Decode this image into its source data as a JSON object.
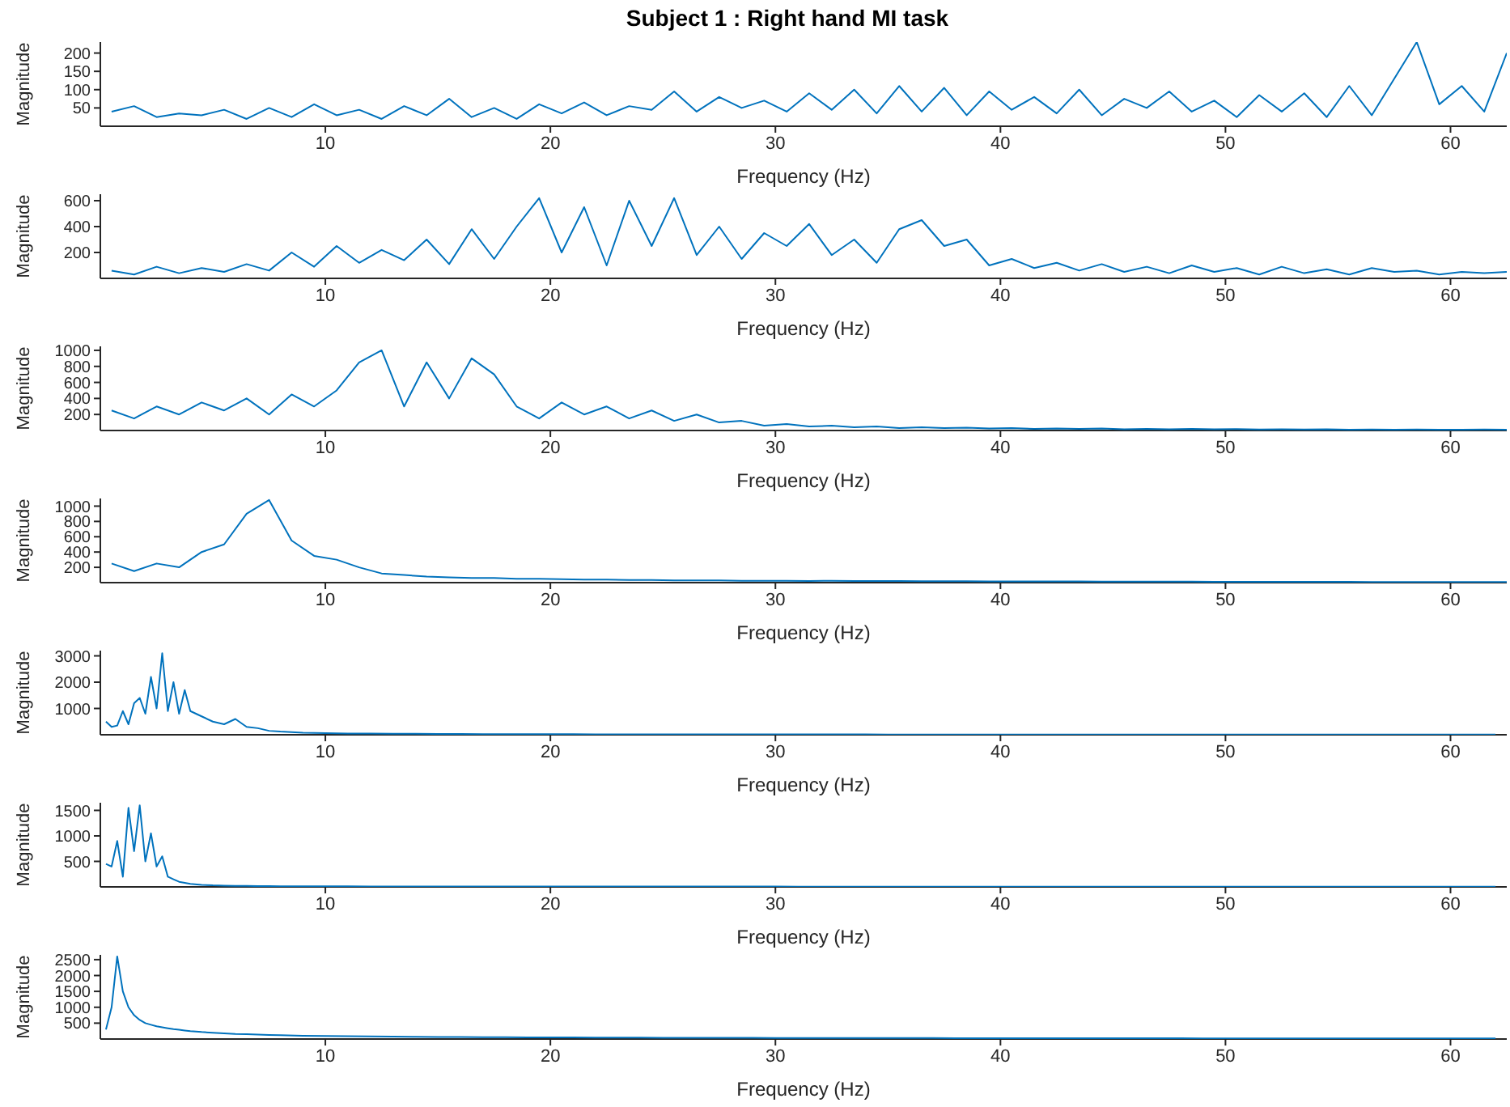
{
  "chart_data": [
    {
      "type": "line",
      "title": "Subject 1 : Right hand MI task",
      "xlabel": "Frequency (Hz)",
      "ylabel": "Magnitude",
      "xlim": [
        0,
        62.5
      ],
      "xticks": [
        10,
        20,
        30,
        40,
        50,
        60
      ],
      "ylim": [
        0,
        230
      ],
      "yticks": [
        50,
        100,
        150,
        200
      ],
      "marker": "none",
      "series": [
        {
          "color": "#0072bd",
          "x": [
            0.5,
            1.5,
            2.5,
            3.5,
            4.5,
            5.5,
            6.5,
            7.5,
            8.5,
            9.5,
            10.5,
            11.5,
            12.5,
            13.5,
            14.5,
            15.5,
            16.5,
            17.5,
            18.5,
            19.5,
            20.5,
            21.5,
            22.5,
            23.5,
            24.5,
            25.5,
            26.5,
            27.5,
            28.5,
            29.5,
            30.5,
            31.5,
            32.5,
            33.5,
            34.5,
            35.5,
            36.5,
            37.5,
            38.5,
            39.5,
            40.5,
            41.5,
            42.5,
            43.5,
            44.5,
            45.5,
            46.5,
            47.5,
            48.5,
            49.5,
            50.5,
            51.5,
            52.5,
            53.5,
            54.5,
            55.5,
            56.5,
            57.5,
            58.5,
            59.5,
            60.5,
            61.5,
            62.5
          ],
          "values": [
            40,
            55,
            25,
            35,
            30,
            45,
            20,
            50,
            25,
            60,
            30,
            45,
            20,
            55,
            30,
            75,
            25,
            50,
            20,
            60,
            35,
            65,
            30,
            55,
            45,
            95,
            40,
            80,
            50,
            70,
            40,
            90,
            45,
            100,
            35,
            110,
            40,
            105,
            30,
            95,
            45,
            80,
            35,
            100,
            30,
            75,
            50,
            95,
            40,
            70,
            25,
            85,
            40,
            90,
            25,
            110,
            30,
            130,
            230,
            60,
            110,
            40,
            200
          ]
        }
      ]
    },
    {
      "type": "line",
      "xlabel": "Frequency (Hz)",
      "ylabel": "Magnitude",
      "xlim": [
        0,
        62.5
      ],
      "xticks": [
        10,
        20,
        30,
        40,
        50,
        60
      ],
      "ylim": [
        0,
        650
      ],
      "yticks": [
        200,
        400,
        600
      ],
      "marker": "none",
      "series": [
        {
          "color": "#0072bd",
          "x": [
            0.5,
            1.5,
            2.5,
            3.5,
            4.5,
            5.5,
            6.5,
            7.5,
            8.5,
            9.5,
            10.5,
            11.5,
            12.5,
            13.5,
            14.5,
            15.5,
            16.5,
            17.5,
            18.5,
            19.5,
            20.5,
            21.5,
            22.5,
            23.5,
            24.5,
            25.5,
            26.5,
            27.5,
            28.5,
            29.5,
            30.5,
            31.5,
            32.5,
            33.5,
            34.5,
            35.5,
            36.5,
            37.5,
            38.5,
            39.5,
            40.5,
            41.5,
            42.5,
            43.5,
            44.5,
            45.5,
            46.5,
            47.5,
            48.5,
            49.5,
            50.5,
            51.5,
            52.5,
            53.5,
            54.5,
            55.5,
            56.5,
            57.5,
            58.5,
            59.5,
            60.5,
            61.5,
            62.5
          ],
          "values": [
            60,
            30,
            90,
            40,
            80,
            50,
            110,
            60,
            200,
            90,
            250,
            120,
            220,
            140,
            300,
            110,
            380,
            150,
            400,
            620,
            200,
            550,
            100,
            600,
            250,
            620,
            180,
            400,
            150,
            350,
            250,
            420,
            180,
            300,
            120,
            380,
            450,
            250,
            300,
            100,
            150,
            80,
            120,
            60,
            110,
            50,
            90,
            40,
            100,
            50,
            80,
            30,
            90,
            40,
            70,
            30,
            80,
            50,
            60,
            30,
            50,
            40,
            50
          ]
        }
      ]
    },
    {
      "type": "line",
      "xlabel": "Frequency (Hz)",
      "ylabel": "Magnitude",
      "xlim": [
        0,
        62.5
      ],
      "xticks": [
        10,
        20,
        30,
        40,
        50,
        60
      ],
      "ylim": [
        0,
        1050
      ],
      "yticks": [
        200,
        400,
        600,
        800,
        1000
      ],
      "marker": "none",
      "series": [
        {
          "color": "#0072bd",
          "x": [
            0.5,
            1.5,
            2.5,
            3.5,
            4.5,
            5.5,
            6.5,
            7.5,
            8.5,
            9.5,
            10.5,
            11.5,
            12.5,
            13.5,
            14.5,
            15.5,
            16.5,
            17.5,
            18.5,
            19.5,
            20.5,
            21.5,
            22.5,
            23.5,
            24.5,
            25.5,
            26.5,
            27.5,
            28.5,
            29.5,
            30.5,
            31.5,
            32.5,
            33.5,
            34.5,
            35.5,
            36.5,
            37.5,
            38.5,
            39.5,
            40.5,
            41.5,
            42.5,
            43.5,
            44.5,
            45.5,
            46.5,
            47.5,
            48.5,
            49.5,
            50.5,
            51.5,
            52.5,
            53.5,
            54.5,
            55.5,
            56.5,
            57.5,
            58.5,
            59.5,
            60.5,
            61.5,
            62.5
          ],
          "values": [
            250,
            150,
            300,
            200,
            350,
            250,
            400,
            200,
            450,
            300,
            500,
            850,
            1000,
            300,
            850,
            400,
            900,
            700,
            300,
            150,
            350,
            200,
            300,
            150,
            250,
            120,
            200,
            100,
            120,
            60,
            80,
            50,
            60,
            40,
            50,
            30,
            40,
            30,
            35,
            25,
            30,
            20,
            25,
            20,
            25,
            15,
            20,
            15,
            20,
            15,
            18,
            12,
            15,
            12,
            15,
            10,
            12,
            10,
            12,
            10,
            10,
            12,
            10
          ]
        }
      ]
    },
    {
      "type": "line",
      "xlabel": "Frequency (Hz)",
      "ylabel": "Magnitude",
      "xlim": [
        0,
        62.5
      ],
      "xticks": [
        10,
        20,
        30,
        40,
        50,
        60
      ],
      "ylim": [
        0,
        1100
      ],
      "yticks": [
        200,
        400,
        600,
        800,
        1000
      ],
      "marker": "none",
      "series": [
        {
          "color": "#0072bd",
          "x": [
            0.5,
            1.5,
            2.5,
            3.5,
            4.5,
            5.5,
            6.5,
            7.5,
            8.5,
            9.5,
            10.5,
            11.5,
            12.5,
            13.5,
            14.5,
            15.5,
            16.5,
            17.5,
            18.5,
            19.5,
            20.5,
            21.5,
            22.5,
            23.5,
            24.5,
            25.5,
            26.5,
            27.5,
            28.5,
            29.5,
            30.5,
            31.5,
            32.5,
            33.5,
            34.5,
            35.5,
            36.5,
            37.5,
            38.5,
            39.5,
            40.5,
            41.5,
            42.5,
            43.5,
            44.5,
            45.5,
            46.5,
            47.5,
            48.5,
            49.5,
            50.5,
            51.5,
            52.5,
            53.5,
            54.5,
            55.5,
            56.5,
            57.5,
            58.5,
            59.5,
            60.5,
            61.5,
            62.5
          ],
          "values": [
            250,
            150,
            250,
            200,
            400,
            500,
            900,
            1080,
            550,
            350,
            300,
            200,
            120,
            100,
            80,
            70,
            60,
            60,
            50,
            50,
            45,
            40,
            40,
            35,
            35,
            30,
            30,
            30,
            25,
            25,
            25,
            20,
            25,
            20,
            20,
            20,
            18,
            18,
            18,
            15,
            15,
            15,
            15,
            15,
            12,
            12,
            12,
            12,
            12,
            10,
            10,
            10,
            10,
            10,
            10,
            10,
            8,
            8,
            8,
            8,
            8,
            8,
            8
          ]
        }
      ]
    },
    {
      "type": "line",
      "xlabel": "Frequency (Hz)",
      "ylabel": "Magnitude",
      "xlim": [
        0,
        62.5
      ],
      "xticks": [
        10,
        20,
        30,
        40,
        50,
        60
      ],
      "ylim": [
        0,
        3200
      ],
      "yticks": [
        1000,
        2000,
        3000
      ],
      "marker": "none",
      "series": [
        {
          "color": "#0072bd",
          "x": [
            0.25,
            0.5,
            0.75,
            1,
            1.25,
            1.5,
            1.75,
            2,
            2.25,
            2.5,
            2.75,
            3,
            3.25,
            3.5,
            3.75,
            4,
            4.5,
            5,
            5.5,
            6,
            6.5,
            7,
            7.5,
            8,
            9,
            10,
            11,
            12,
            13,
            14,
            15,
            16,
            17,
            18,
            19,
            20,
            21,
            22,
            23,
            24,
            25,
            26,
            27,
            28,
            29,
            30,
            31,
            32,
            33,
            34,
            35,
            36,
            37,
            38,
            39,
            40,
            41,
            42,
            43,
            44,
            45,
            46,
            47,
            48,
            49,
            50,
            51,
            52,
            53,
            54,
            55,
            56,
            57,
            58,
            59,
            60,
            61,
            62
          ],
          "values": [
            500,
            300,
            350,
            900,
            400,
            1200,
            1400,
            800,
            2200,
            1000,
            3100,
            900,
            2000,
            800,
            1700,
            900,
            700,
            500,
            400,
            600,
            300,
            250,
            150,
            120,
            80,
            60,
            50,
            45,
            40,
            35,
            30,
            30,
            25,
            25,
            22,
            20,
            20,
            18,
            18,
            16,
            16,
            15,
            15,
            14,
            14,
            13,
            13,
            12,
            12,
            12,
            11,
            11,
            11,
            10,
            10,
            10,
            10,
            10,
            10,
            10,
            10,
            10,
            10,
            10,
            10,
            10,
            10,
            10,
            10,
            10,
            10,
            10,
            10,
            10,
            10,
            10,
            10,
            10
          ]
        }
      ]
    },
    {
      "type": "line",
      "xlabel": "Frequency (Hz)",
      "ylabel": "Magnitude",
      "xlim": [
        0,
        62.5
      ],
      "xticks": [
        10,
        20,
        30,
        40,
        50,
        60
      ],
      "ylim": [
        0,
        1650
      ],
      "yticks": [
        500,
        1000,
        1500
      ],
      "marker": "none",
      "series": [
        {
          "color": "#0072bd",
          "x": [
            0.25,
            0.5,
            0.75,
            1,
            1.25,
            1.5,
            1.75,
            2,
            2.25,
            2.5,
            2.75,
            3,
            3.25,
            3.5,
            3.75,
            4,
            4.5,
            5,
            5.5,
            6,
            6.5,
            7,
            7.5,
            8,
            9,
            10,
            11,
            12,
            13,
            14,
            15,
            16,
            17,
            18,
            19,
            20,
            21,
            22,
            23,
            24,
            25,
            26,
            27,
            28,
            29,
            30,
            31,
            32,
            33,
            34,
            35,
            36,
            37,
            38,
            39,
            40,
            41,
            42,
            43,
            44,
            45,
            46,
            47,
            48,
            49,
            50,
            51,
            52,
            53,
            54,
            55,
            56,
            57,
            58,
            59,
            60,
            61,
            62
          ],
          "values": [
            450,
            400,
            900,
            200,
            1550,
            700,
            1600,
            500,
            1050,
            400,
            600,
            200,
            150,
            100,
            80,
            60,
            40,
            30,
            25,
            20,
            18,
            15,
            15,
            12,
            10,
            10,
            10,
            9,
            9,
            9,
            8,
            8,
            8,
            8,
            7,
            7,
            7,
            7,
            7,
            6,
            6,
            6,
            6,
            6,
            6,
            6,
            5,
            5,
            5,
            5,
            5,
            5,
            5,
            5,
            5,
            5,
            5,
            5,
            5,
            5,
            5,
            5,
            5,
            5,
            5,
            5,
            5,
            5,
            5,
            5,
            5,
            5,
            5,
            5,
            5,
            5,
            5,
            5
          ]
        }
      ]
    },
    {
      "type": "line",
      "xlabel": "Frequency (Hz)",
      "ylabel": "Magnitude",
      "xlim": [
        0,
        62.5
      ],
      "xticks": [
        10,
        20,
        30,
        40,
        50,
        60
      ],
      "ylim": [
        0,
        2650
      ],
      "yticks": [
        500,
        1000,
        1500,
        2000,
        2500
      ],
      "marker": "none",
      "series": [
        {
          "color": "#0072bd",
          "x": [
            0.25,
            0.5,
            0.75,
            1,
            1.25,
            1.5,
            1.75,
            2,
            2.25,
            2.5,
            2.75,
            3,
            3.25,
            3.5,
            3.75,
            4,
            4.5,
            5,
            5.5,
            6,
            6.5,
            7,
            7.5,
            8,
            9,
            10,
            11,
            12,
            13,
            14,
            15,
            16,
            17,
            18,
            19,
            20,
            21,
            22,
            23,
            24,
            25,
            26,
            27,
            28,
            29,
            30,
            31,
            32,
            33,
            34,
            35,
            36,
            37,
            38,
            39,
            40,
            41,
            42,
            43,
            44,
            45,
            46,
            47,
            48,
            49,
            50,
            51,
            52,
            53,
            54,
            55,
            56,
            57,
            58,
            59,
            60,
            61,
            62
          ],
          "values": [
            300,
            1000,
            2600,
            1500,
            1000,
            750,
            600,
            500,
            450,
            400,
            370,
            340,
            310,
            290,
            270,
            250,
            220,
            200,
            180,
            160,
            150,
            140,
            130,
            120,
            105,
            95,
            88,
            82,
            76,
            70,
            66,
            62,
            58,
            55,
            52,
            50,
            48,
            46,
            44,
            42,
            40,
            39,
            38,
            37,
            36,
            35,
            34,
            33,
            32,
            31,
            30,
            30,
            29,
            28,
            28,
            27,
            26,
            26,
            25,
            25,
            24,
            24,
            23,
            23,
            22,
            22,
            21,
            21,
            20,
            20,
            20,
            19,
            19,
            19,
            18,
            18,
            18,
            17
          ]
        }
      ]
    }
  ]
}
